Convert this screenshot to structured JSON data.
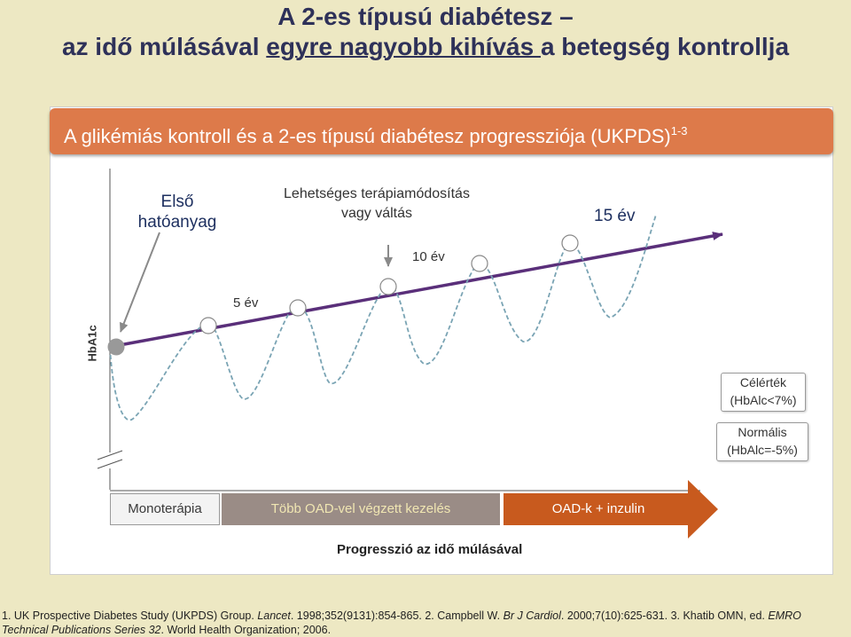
{
  "title": {
    "line1": "A 2-es típusú diabétesz –",
    "line2_pre": "az idő múlásával ",
    "line2_underlined": "egyre nagyobb kihívás ",
    "line2_post": "a betegség kontrollja"
  },
  "banner": {
    "text": "A glikémiás kontroll és a 2-es típusú diabétesz progressziója (UKPDS)",
    "superscript": "1-3"
  },
  "labels": {
    "elso_line1": "Első",
    "elso_line2": "hatóanyag",
    "lehet_line1": "Lehetséges terápiamódosítás",
    "lehet_line2": "vagy váltás",
    "ev15": "15 év",
    "ev10": "10 év",
    "ev5": "5 év",
    "yaxis": "HbA1c",
    "celertek_line1": "Célérték",
    "celertek_line2": "(HbAlc<7%)",
    "normalis_line1": "Normális",
    "normalis_line2": "(HbAlc=-5%)"
  },
  "therapy_bar": {
    "mono": "Monoterápia",
    "tobb": "Több OAD-vel végzett kezelés",
    "oad": "OAD-k + inzulin"
  },
  "x_axis_label": "Progresszió az idő múlásával",
  "references": {
    "r1_pre": "1. UK Prospective Diabetes Study (UKPDS) Group. ",
    "r1_journal": "Lancet",
    "r1_post": ". 1998;352(9131):854-865. 2. Campbell W. ",
    "r2_journal": "Br J Cardiol",
    "r2_post": ". 2000;7(10):625-631. 3. Khatib OMN, ed. ",
    "r3_series_line1": "EMRO",
    "r3_series_line2": "Technical Publications Series 32",
    "r3_post": ". World Health Organization; 2006."
  },
  "colors": {
    "background": "#ede8c3",
    "banner": "#dd7a4a",
    "trend_line": "#5a2f7a",
    "glucose_curve": "#7aa4b4",
    "tobb_bar": "#9a8c86",
    "oad_arrow": "#c85a1e"
  }
}
